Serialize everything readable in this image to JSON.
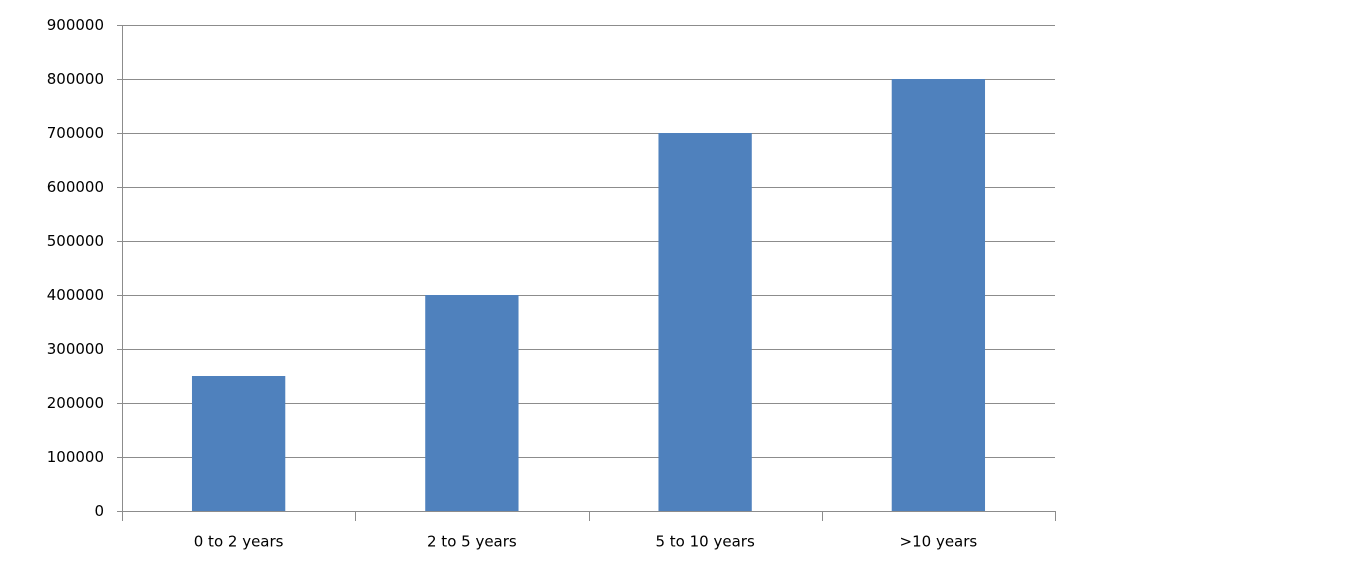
{
  "chart_data": {
    "type": "bar",
    "categories": [
      "0 to 2 years",
      "2 to 5 years",
      "5 to 10 years",
      ">10 years"
    ],
    "values": [
      250000,
      400000,
      700000,
      800000
    ],
    "color": "#4f81bd",
    "ylim": [
      0,
      900000
    ],
    "yticks": [
      0,
      100000,
      200000,
      300000,
      400000,
      500000,
      600000,
      700000,
      800000,
      900000
    ],
    "grid": true
  }
}
